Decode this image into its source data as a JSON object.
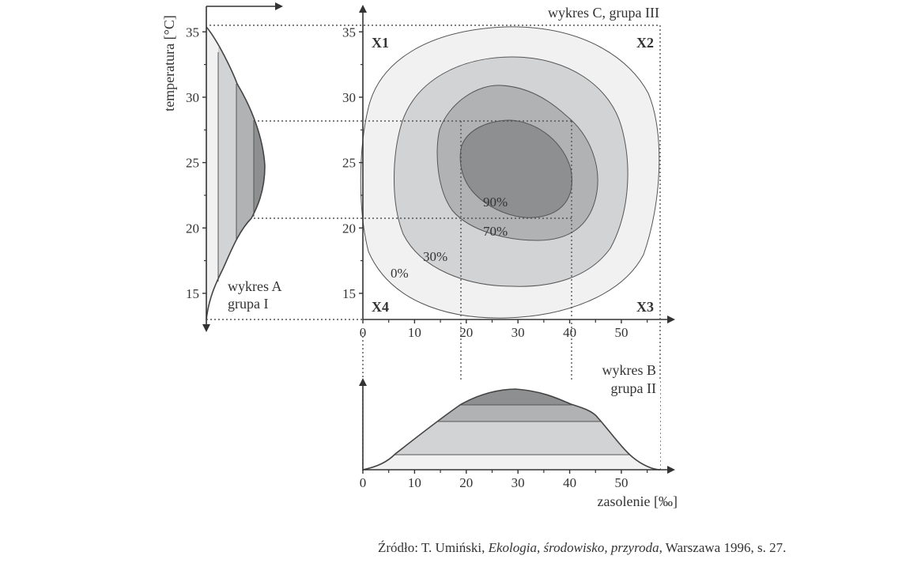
{
  "chart_data": [
    {
      "type": "area",
      "panel": "A",
      "annotation": [
        "wykres A",
        "grupa I"
      ],
      "ylabel": "temperatura [°C]",
      "yticks": [
        "15",
        "20",
        "25",
        "30",
        "35"
      ],
      "ylim": [
        13,
        35.5
      ],
      "orientation": "horizontal",
      "band_ranges": [
        {
          "level": "0%",
          "range": [
            13,
            35.5
          ]
        },
        {
          "level": "30%",
          "range": [
            16,
            33
          ]
        },
        {
          "level": "70%",
          "range": [
            19,
            31
          ]
        },
        {
          "level": "90%",
          "range": [
            20.7,
            28.3
          ]
        }
      ],
      "fills": [
        "#f0f1f0",
        "#d2d3d4",
        "#b1b2b3",
        "#8e8f90"
      ]
    },
    {
      "type": "area",
      "panel": "B",
      "annotation": [
        "wykres B",
        "grupa II"
      ],
      "xlabel": "zasolenie [‰]",
      "xticks": [
        "0",
        "10",
        "20",
        "30",
        "40",
        "50"
      ],
      "xlim": [
        0,
        57.5
      ],
      "band_ranges": [
        {
          "level": "0%",
          "range": [
            0,
            57.5
          ]
        },
        {
          "level": "30%",
          "range": [
            6,
            51
          ]
        },
        {
          "level": "70%",
          "range": [
            14.5,
            46
          ]
        },
        {
          "level": "90%",
          "range": [
            19,
            40
          ]
        }
      ],
      "fills": [
        "#f0f1f0",
        "#d2d3d4",
        "#b1b2b3",
        "#8e8f90"
      ]
    },
    {
      "type": "contour",
      "panel": "C",
      "title": "wykres C, grupa III",
      "xlim": [
        0,
        57.5
      ],
      "ylim": [
        13,
        35.5
      ],
      "xticks": [
        "0",
        "10",
        "20",
        "30",
        "40",
        "50"
      ],
      "yticks": [
        "15",
        "20",
        "25",
        "30",
        "35"
      ],
      "corner_labels": [
        "X1",
        "X2",
        "X3",
        "X4"
      ],
      "contour_labels": [
        "0%",
        "30%",
        "70%",
        "90%"
      ],
      "optimum_box": {
        "salinity": [
          19,
          40
        ],
        "temperature": [
          20.7,
          28.3
        ]
      },
      "fills": [
        "#f0f1f0",
        "#d2d3d4",
        "#b1b2b3",
        "#8e8f90"
      ]
    }
  ],
  "source": {
    "prefix": "Źródło: T. Umiński, ",
    "title": "Ekologia, środowisko, przyroda",
    "suffix": ", Warszawa 1996, s. 27."
  }
}
